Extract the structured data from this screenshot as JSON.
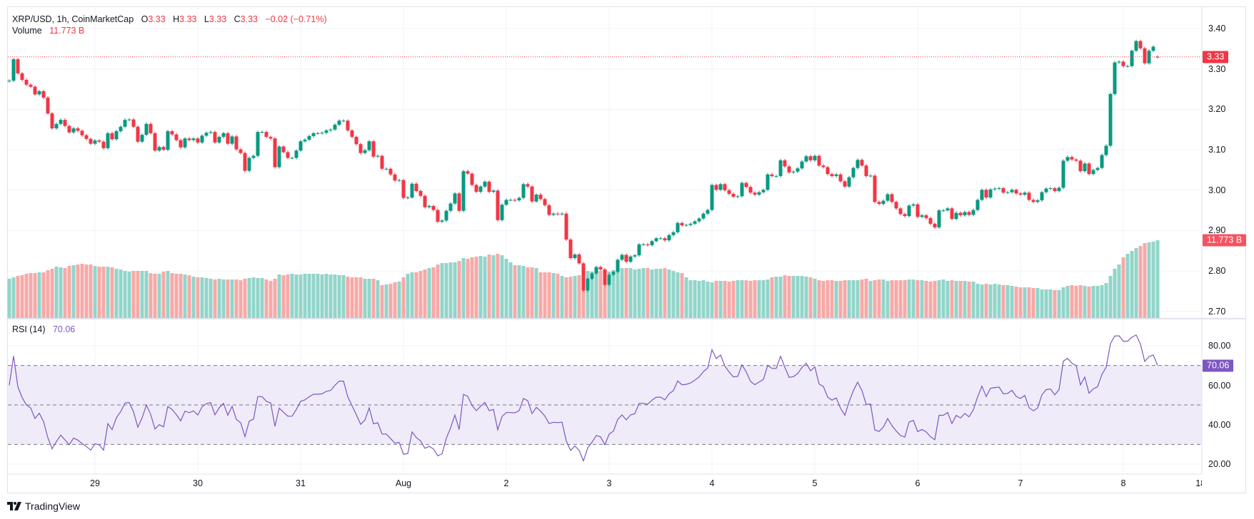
{
  "legend": {
    "symbol": "XRP/USD, 1h, CoinMarketCap",
    "o_label": "O",
    "o_value": "3.33",
    "h_label": "H",
    "h_value": "3.33",
    "l_label": "L",
    "l_value": "3.33",
    "c_label": "C",
    "c_value": "3.33",
    "change": "−0.02 (−0.71%)",
    "volume_label": "Volume",
    "volume_value": "11.773 B",
    "rsi_label": "RSI (14)",
    "rsi_value": "70.06"
  },
  "price_axis": {
    "ticks": [
      "3.40",
      "3.30",
      "3.20",
      "3.10",
      "3.00",
      "2.90",
      "2.80",
      "2.70"
    ],
    "last_price_tag": "3.33",
    "volume_tag": "11.773 B"
  },
  "rsi_axis": {
    "ticks": [
      "80.00",
      "60.00",
      "40.00",
      "20.00"
    ],
    "rsi_tag": "70.06"
  },
  "time_axis": {
    "labels": [
      "29",
      "30",
      "31",
      "Aug",
      "2",
      "3",
      "4",
      "5",
      "6",
      "7",
      "8",
      "18:"
    ]
  },
  "branding": {
    "logo_text": "TradingView"
  },
  "colors": {
    "up": "#089981",
    "down": "#F23645",
    "volume_up": "#92D5CA",
    "volume_down": "#F7A9A7",
    "rsi_line": "#7E57C2",
    "rsi_band": "#EFEBF8",
    "grid": "#F0F3FA",
    "last_price": "#F23645",
    "volume_tag": "#F7525F"
  },
  "chart_data": {
    "type": "candlestick",
    "title": "XRP/USD, 1h, CoinMarketCap",
    "interval": "1h",
    "price_range": [
      2.7,
      3.4
    ],
    "last_price": 3.33,
    "opens": {
      "0": 3.27,
      "268": 3.33
    },
    "closes": [
      3.271,
      3.324,
      3.289,
      3.273,
      3.261,
      3.256,
      3.237,
      3.245,
      3.229,
      3.19,
      3.153,
      3.164,
      3.174,
      3.159,
      3.143,
      3.153,
      3.147,
      3.136,
      3.127,
      3.115,
      3.123,
      3.12,
      3.104,
      3.141,
      3.126,
      3.146,
      3.157,
      3.174,
      3.175,
      3.157,
      3.12,
      3.137,
      3.164,
      3.141,
      3.098,
      3.107,
      3.1,
      3.146,
      3.138,
      3.124,
      3.106,
      3.128,
      3.124,
      3.128,
      3.118,
      3.135,
      3.142,
      3.144,
      3.118,
      3.132,
      3.141,
      3.115,
      3.133,
      3.101,
      3.092,
      3.048,
      3.08,
      3.085,
      3.144,
      3.144,
      3.132,
      3.128,
      3.057,
      3.108,
      3.094,
      3.08,
      3.08,
      3.098,
      3.121,
      3.125,
      3.134,
      3.141,
      3.141,
      3.142,
      3.148,
      3.15,
      3.162,
      3.172,
      3.172,
      3.148,
      3.132,
      3.114,
      3.092,
      3.099,
      3.121,
      3.083,
      3.085,
      3.053,
      3.053,
      3.039,
      3.024,
      3.025,
      2.981,
      2.982,
      3.016,
      2.998,
      2.986,
      2.958,
      2.961,
      2.951,
      2.922,
      2.925,
      2.949,
      2.967,
      2.992,
      2.949,
      3.047,
      3.041,
      3.013,
      2.996,
      3.009,
      3.021,
      2.996,
      2.999,
      2.926,
      2.964,
      2.976,
      2.976,
      2.975,
      2.981,
      3.015,
      3.009,
      2.972,
      2.989,
      2.978,
      2.963,
      2.939,
      2.942,
      2.941,
      2.942,
      2.878,
      2.832,
      2.841,
      2.819,
      2.752,
      2.781,
      2.794,
      2.81,
      2.804,
      2.766,
      2.791,
      2.798,
      2.828,
      2.84,
      2.823,
      2.836,
      2.839,
      2.866,
      2.866,
      2.864,
      2.874,
      2.881,
      2.881,
      2.876,
      2.889,
      2.896,
      2.919,
      2.913,
      2.914,
      2.917,
      2.923,
      2.93,
      2.942,
      2.951,
      3.013,
      3.001,
      3.015,
      3.0,
      2.991,
      2.984,
      2.985,
      3.018,
      3.008,
      2.994,
      2.989,
      2.995,
      3.001,
      3.039,
      3.035,
      3.035,
      3.074,
      3.059,
      3.044,
      3.046,
      3.054,
      3.071,
      3.084,
      3.074,
      3.085,
      3.061,
      3.057,
      3.04,
      3.035,
      3.039,
      3.022,
      3.009,
      3.032,
      3.055,
      3.075,
      3.061,
      3.035,
      3.036,
      2.971,
      2.966,
      2.974,
      2.99,
      2.971,
      2.955,
      2.941,
      2.936,
      2.962,
      2.965,
      2.934,
      2.938,
      2.931,
      2.917,
      2.908,
      2.95,
      2.95,
      2.955,
      2.929,
      2.944,
      2.938,
      2.946,
      2.939,
      2.951,
      2.976,
      3.001,
      2.982,
      3.002,
      3.004,
      3.005,
      2.994,
      2.995,
      3.001,
      2.992,
      2.989,
      2.994,
      2.976,
      2.971,
      2.975,
      2.995,
      3.004,
      3.005,
      2.998,
      3.006,
      3.073,
      3.082,
      3.076,
      3.073,
      3.047,
      3.066,
      3.04,
      3.05,
      3.055,
      3.087,
      3.11,
      3.238,
      3.316,
      3.318,
      3.307,
      3.307,
      3.345,
      3.369,
      3.351,
      3.314,
      3.345,
      3.355,
      3.33
    ],
    "volume_unit": "B",
    "volumes": [
      5.94,
      6.16,
      6.37,
      6.48,
      6.7,
      6.8,
      6.8,
      6.91,
      6.91,
      7.24,
      7.45,
      7.78,
      7.67,
      7.56,
      7.88,
      7.99,
      8.1,
      8.21,
      8.1,
      8.1,
      7.88,
      7.78,
      7.78,
      7.78,
      7.67,
      7.45,
      7.34,
      7.13,
      7.02,
      7.13,
      7.13,
      7.13,
      7.13,
      6.8,
      6.7,
      6.7,
      7.02,
      7.13,
      6.8,
      6.7,
      6.7,
      6.59,
      6.48,
      6.26,
      6.16,
      6.16,
      6.05,
      5.94,
      5.83,
      5.94,
      5.83,
      5.83,
      5.83,
      5.83,
      5.72,
      5.94,
      6.05,
      6.16,
      6.05,
      6.05,
      5.83,
      5.62,
      5.94,
      6.59,
      6.48,
      6.59,
      6.7,
      6.59,
      6.59,
      6.7,
      6.7,
      6.7,
      6.7,
      6.59,
      6.7,
      6.59,
      6.59,
      6.48,
      6.48,
      6.26,
      6.16,
      6.16,
      6.16,
      5.94,
      5.94,
      5.94,
      5.72,
      4.97,
      5.08,
      5.18,
      5.4,
      5.51,
      6.16,
      6.7,
      6.91,
      6.91,
      7.13,
      7.34,
      7.56,
      7.67,
      8.1,
      8.32,
      8.32,
      8.42,
      8.42,
      8.64,
      9.07,
      8.96,
      9.18,
      9.29,
      9.4,
      9.29,
      9.61,
      9.5,
      9.72,
      9.5,
      8.96,
      8.42,
      7.99,
      7.99,
      7.88,
      7.67,
      7.67,
      7.56,
      6.91,
      6.91,
      6.91,
      6.8,
      6.7,
      6.37,
      6.16,
      6.26,
      6.37,
      6.48,
      6.9,
      7.13,
      7.02,
      7.13,
      7.13,
      7.34,
      7.02,
      7.24,
      7.0,
      7.56,
      7.56,
      7.56,
      7.34,
      7.45,
      7.56,
      7.56,
      7.34,
      7.45,
      7.45,
      7.56,
      7.34,
      7.13,
      6.91,
      6.8,
      6.16,
      5.72,
      5.72,
      5.62,
      5.72,
      5.51,
      5.4,
      5.62,
      5.62,
      5.62,
      5.51,
      5.62,
      5.72,
      5.72,
      5.72,
      5.62,
      5.72,
      5.72,
      5.72,
      5.83,
      6.16,
      6.26,
      6.26,
      6.48,
      6.37,
      6.37,
      6.37,
      6.37,
      6.26,
      6.16,
      5.94,
      5.72,
      5.62,
      5.72,
      5.72,
      5.62,
      5.62,
      5.72,
      5.72,
      5.72,
      5.72,
      5.83,
      5.94,
      5.62,
      5.72,
      5.83,
      5.83,
      5.62,
      5.72,
      5.72,
      5.72,
      5.72,
      5.83,
      5.83,
      5.72,
      5.72,
      5.62,
      5.51,
      5.62,
      5.72,
      5.83,
      5.62,
      5.72,
      5.62,
      5.62,
      5.62,
      5.51,
      5.51,
      5.18,
      5.08,
      5.18,
      5.08,
      5.18,
      5.08,
      4.97,
      4.97,
      4.86,
      4.75,
      4.64,
      4.64,
      4.64,
      4.54,
      4.54,
      4.32,
      4.32,
      4.32,
      4.21,
      4.21,
      4.64,
      4.86,
      4.97,
      4.86,
      4.97,
      4.86,
      4.75,
      4.86,
      4.86,
      4.97,
      5.29,
      6.37,
      7.45,
      8.1,
      9.18,
      9.72,
      10.15,
      10.58,
      10.91,
      11.34,
      11.45,
      11.56,
      11.773
    ],
    "rsi": {
      "period": 14,
      "last": 70.06,
      "levels": [
        70,
        50,
        30
      ],
      "range": [
        15,
        92
      ]
    },
    "x_labels": [
      "29",
      "30",
      "31",
      "Aug",
      "2",
      "3",
      "4",
      "5",
      "6",
      "7",
      "8",
      "18:"
    ],
    "ylabel": "",
    "xlabel": "",
    "grid": true
  }
}
